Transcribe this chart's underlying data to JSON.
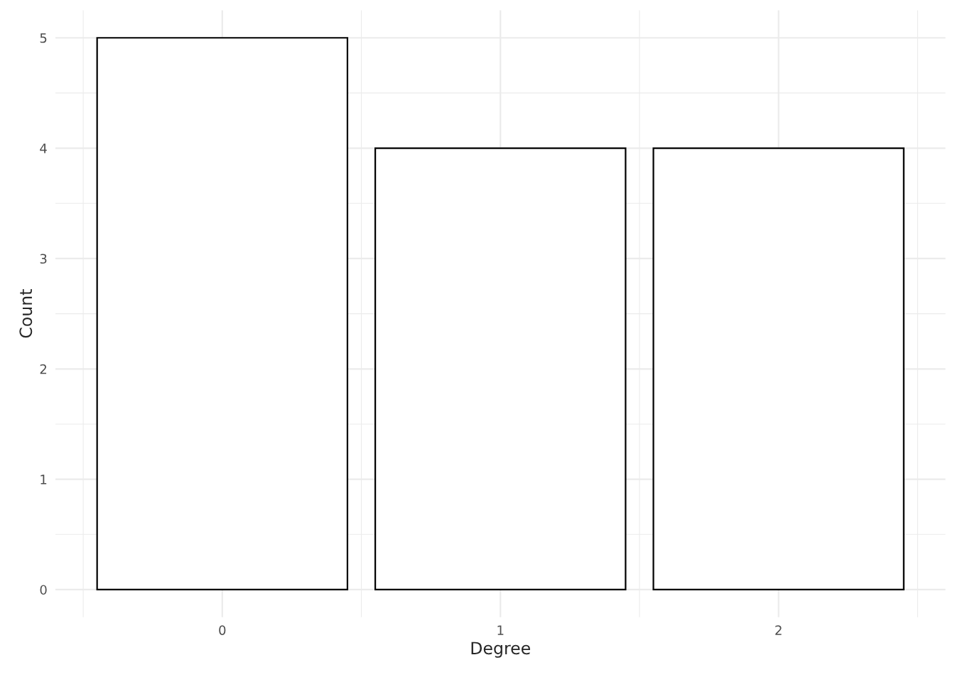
{
  "chart_data": {
    "type": "bar",
    "xlabel": "Degree",
    "ylabel": "Count",
    "x": [
      0,
      1,
      2
    ],
    "values": [
      5,
      4,
      4
    ],
    "color": "#ffffff",
    "xlim": [
      -0.6,
      2.6
    ],
    "xticks": [
      0,
      1,
      2
    ],
    "ylim": [
      -0.25,
      5.25
    ],
    "yticks": [
      0,
      1,
      2,
      3,
      4,
      5
    ],
    "grid": true
  }
}
